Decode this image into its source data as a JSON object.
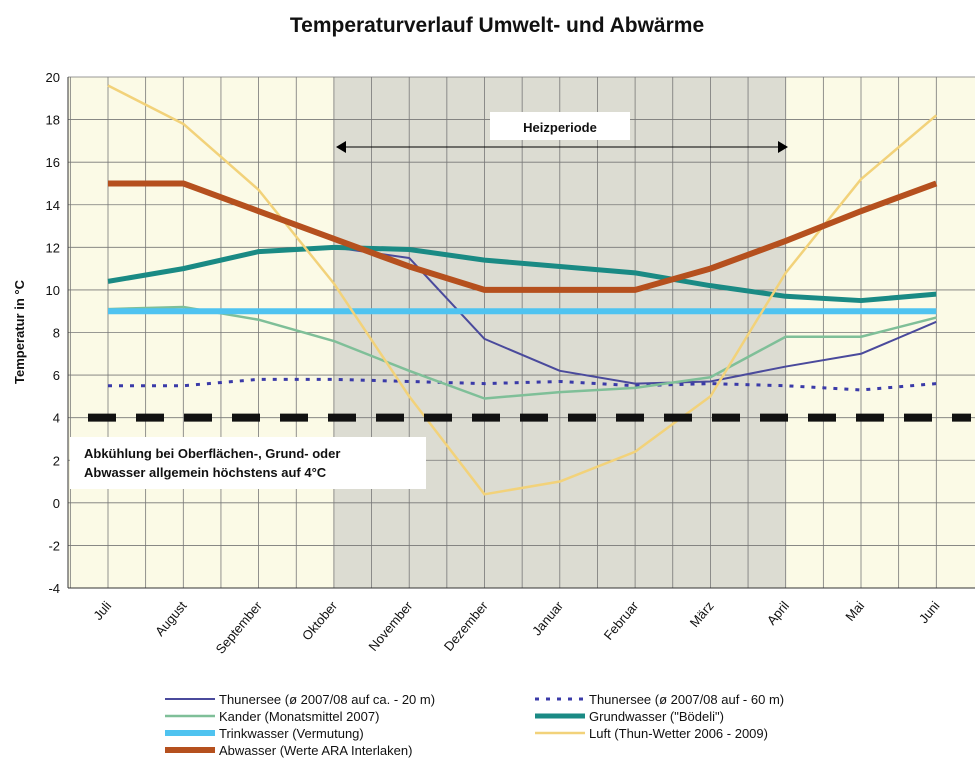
{
  "chart_data": {
    "type": "line",
    "title": "Temperaturverlauf Umwelt- und Abwärme",
    "y_label": "Temperatur  in °C",
    "categories": [
      "Juli",
      "August",
      "September",
      "Oktober",
      "November",
      "Dezember",
      "Januar",
      "Februar",
      "März",
      "April",
      "Mai",
      "Juni"
    ],
    "ylim": [
      -4,
      20
    ],
    "yticks": [
      -4,
      -2,
      0,
      2,
      4,
      6,
      8,
      10,
      12,
      14,
      16,
      18,
      20
    ],
    "grid": true,
    "reference_line": 4,
    "annotations": [
      "Heizperiode",
      "Abkühlung bei Oberflächen-, Grund- oder",
      "Abwasser allgemein höchstens auf 4°C"
    ],
    "series": [
      {
        "name": "Thunersee (ø 2007/08 auf ca. - 20 m)",
        "color": "#4a4a9c",
        "width": 2,
        "dash": "none",
        "values": [
          null,
          null,
          null,
          12,
          11.5,
          7.7,
          6.2,
          5.6,
          5.7,
          6.4,
          7.0,
          8.5
        ]
      },
      {
        "name": "Thunersee (ø 2007/08 auf - 60 m)",
        "color": "#3a3aa8",
        "width": 3,
        "dash": "4 7",
        "values": [
          5.5,
          5.5,
          5.8,
          5.8,
          5.7,
          5.6,
          5.7,
          5.5,
          5.6,
          5.5,
          5.3,
          5.6
        ]
      },
      {
        "name": "Kander (Monatsmittel 2007)",
        "color": "#7fbf98",
        "width": 2.5,
        "dash": "none",
        "values": [
          9.1,
          9.2,
          8.6,
          7.6,
          6.2,
          4.9,
          5.2,
          5.4,
          5.9,
          7.8,
          7.8,
          8.7
        ]
      },
      {
        "name": "Grundwasser (\"Bödeli\")",
        "color": "#1a8a84",
        "width": 5,
        "dash": "none",
        "values": [
          10.4,
          11.0,
          11.8,
          12.0,
          11.9,
          11.4,
          11.1,
          10.8,
          10.2,
          9.7,
          9.5,
          9.8
        ]
      },
      {
        "name": "Trinkwasser (Vermutung)",
        "color": "#4fc3f0",
        "width": 6,
        "dash": "none",
        "values": [
          9,
          9,
          9,
          9,
          9,
          9,
          9,
          9,
          9,
          9,
          9,
          9
        ]
      },
      {
        "name": "Luft (Thun-Wetter 2006 - 2009)",
        "color": "#f2d27a",
        "width": 2.5,
        "dash": "none",
        "values": [
          19.6,
          17.8,
          14.7,
          10.3,
          5.0,
          0.4,
          1.0,
          2.4,
          5.0,
          10.8,
          15.2,
          18.2
        ]
      },
      {
        "name": "Abwasser (Werte ARA Interlaken)",
        "color": "#b5501e",
        "width": 6,
        "dash": "none",
        "values": [
          15,
          15,
          13.7,
          12.4,
          11.1,
          10,
          10,
          10,
          11,
          12.3,
          13.7,
          15
        ]
      }
    ]
  }
}
